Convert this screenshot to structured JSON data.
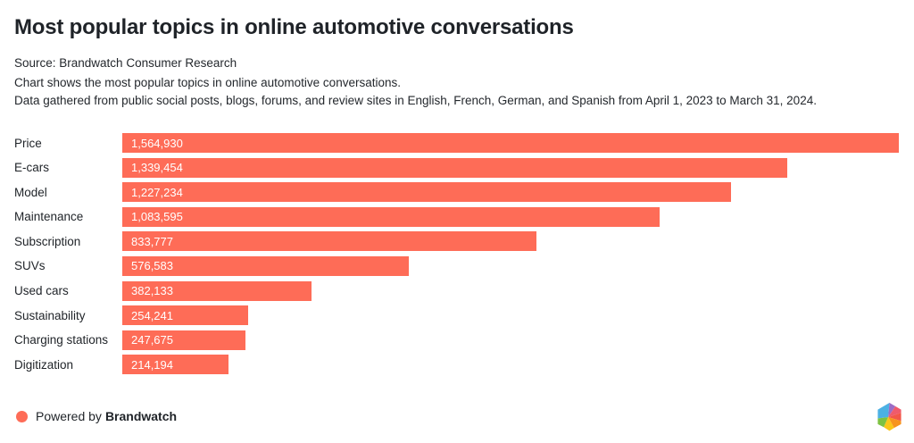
{
  "header": {
    "title": "Most popular topics in online automotive conversations",
    "source": "Source: Brandwatch Consumer Research",
    "description_line1": "Chart shows the most popular topics in online automotive conversations.",
    "description_line2": "Data gathered from public social posts, blogs, forums, and review sites in English, French, German, and Spanish from April 1, 2023 to March 31, 2024."
  },
  "chart_data": {
    "type": "bar",
    "orientation": "horizontal",
    "title": "Most popular topics in online automotive conversations",
    "categories": [
      "Price",
      "E-cars",
      "Model",
      "Maintenance",
      "Subscription",
      "SUVs",
      "Used cars",
      "Sustainability",
      "Charging stations",
      "Digitization"
    ],
    "values": [
      1564930,
      1339454,
      1227234,
      1083595,
      833777,
      576583,
      382133,
      254241,
      247675,
      214194
    ],
    "value_labels": [
      "1,564,930",
      "1,339,454",
      "1,227,234",
      "1,083,595",
      "833,777",
      "576,583",
      "382,133",
      "254,241",
      "247,675",
      "214,194"
    ],
    "xlim": [
      0,
      1564930
    ],
    "bar_color": "#FE6C57",
    "value_label_position": "inside-left",
    "value_label_color": "#FFFFFF",
    "grid": false,
    "axes_hidden": true,
    "legend": "none"
  },
  "footer": {
    "powered_by_prefix": "Powered by",
    "brand": "Brandwatch",
    "dot_color": "#FE6C57",
    "logo_name": "brandwatch-hexagon-logo",
    "logo_colors": {
      "blue": "#4CB1E4",
      "purple": "#9B6DC6",
      "pink": "#EF5B6B",
      "red": "#F25749",
      "orange": "#F7941E",
      "yellow": "#FBC618",
      "green": "#7DC242"
    }
  },
  "colors": {
    "background": "#FFFFFF",
    "accent": "#FE6C57",
    "text": "#1F2328"
  }
}
